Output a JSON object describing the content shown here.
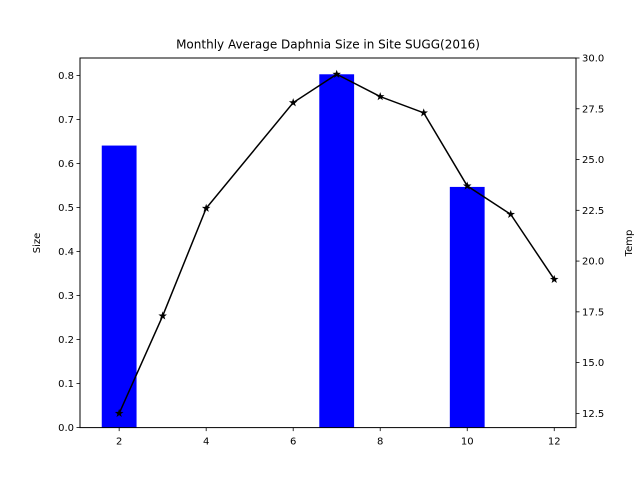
{
  "chart_data": {
    "type": "bar+line",
    "title": "Monthly Average Daphnia Size in Site SUGG(2016)",
    "xlabel": "",
    "ylabel_left": "Size",
    "ylabel_right": "Temp",
    "xlim": [
      1.1,
      12.5
    ],
    "ylim_left": [
      0,
      0.84
    ],
    "ylim_right": [
      11.8,
      30.0
    ],
    "x_ticks": [
      2,
      4,
      6,
      8,
      10,
      12
    ],
    "y_left_ticks": [
      0.0,
      0.1,
      0.2,
      0.3,
      0.4,
      0.5,
      0.6,
      0.7,
      0.8
    ],
    "y_left_tick_labels": [
      "0.0",
      "0.1",
      "0.2",
      "0.3",
      "0.4",
      "0.5",
      "0.6",
      "0.7",
      "0.8"
    ],
    "y_right_ticks": [
      12.5,
      15.0,
      17.5,
      20.0,
      22.5,
      25.0,
      27.5,
      30.0
    ],
    "y_right_tick_labels": [
      "12.5",
      "15.0",
      "17.5",
      "20.0",
      "22.5",
      "25.0",
      "27.5",
      "30.0"
    ],
    "bar_series": {
      "axis": "left",
      "color": "#0000ff",
      "bar_width": 0.8,
      "x": [
        2,
        7,
        10
      ],
      "values": [
        0.641,
        0.803,
        0.547
      ]
    },
    "line_series": {
      "axis": "right",
      "color": "#000000",
      "marker": "star",
      "x": [
        2,
        3,
        4,
        6,
        7,
        8,
        9,
        10,
        11,
        12
      ],
      "values": [
        12.5,
        17.3,
        22.6,
        27.8,
        29.2,
        28.1,
        27.3,
        23.7,
        22.3,
        19.1
      ]
    },
    "grid": false,
    "legend": "none"
  }
}
